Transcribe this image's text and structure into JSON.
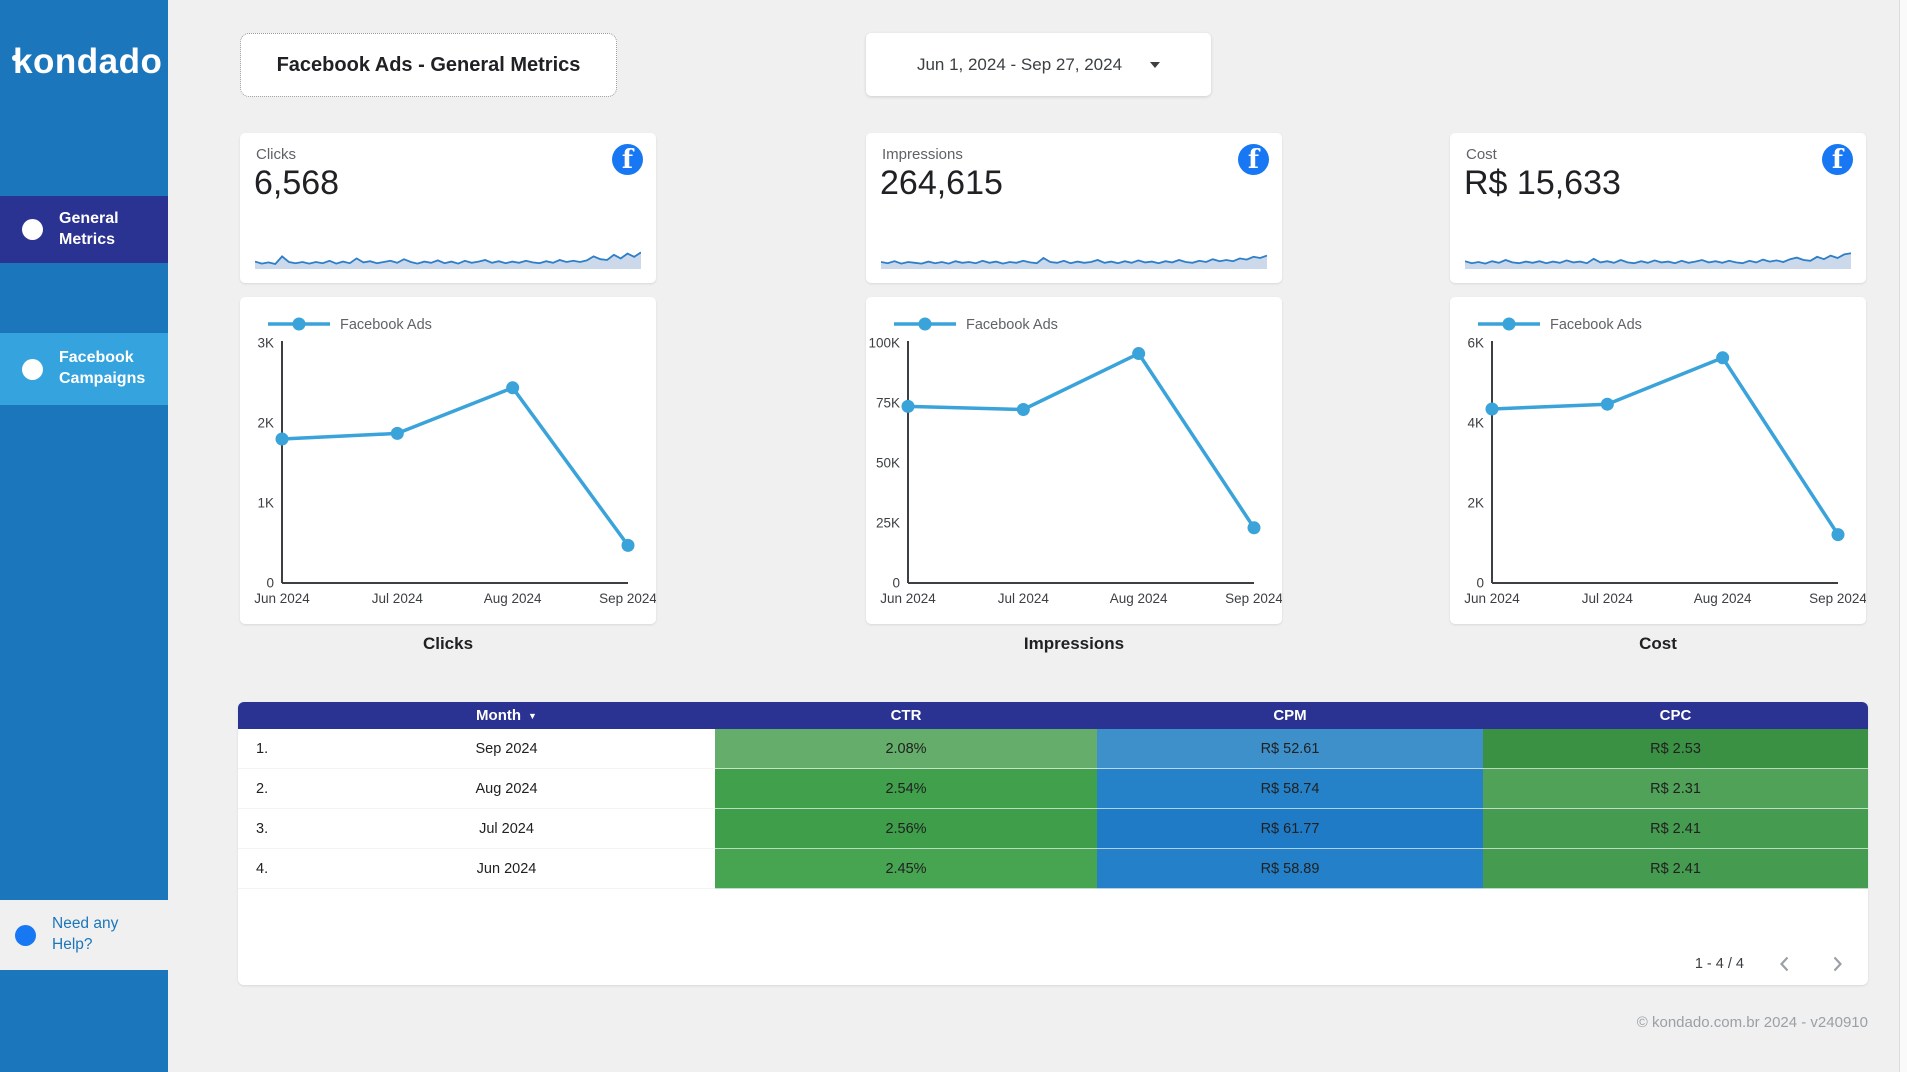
{
  "sidebar": {
    "logo": "kondado",
    "items": [
      {
        "label": "General Metrics",
        "active": true
      },
      {
        "label": "Facebook Campaigns",
        "active": false
      }
    ],
    "help": "Need any Help?"
  },
  "header": {
    "title": "Facebook Ads - General Metrics",
    "date_range": "Jun 1, 2024 - Sep 27, 2024"
  },
  "theme": {
    "sidebar_blue": "#1b76bc",
    "nav_active_navy": "#2a3292",
    "nav_active_light_blue": "#34a3de",
    "facebook_blue": "#1877f2",
    "chart_line_blue": "#39a3da",
    "sparkline_blue": "#2e7ec8",
    "sparkline_fill": "#c5d5e9",
    "table_header_navy": "#2a3292",
    "page_background": "#f0f0f0"
  },
  "scorecards": [
    {
      "label": "Clicks",
      "value": "6,568",
      "sparkline": [
        0.32,
        0.22,
        0.28,
        0.2,
        0.58,
        0.3,
        0.24,
        0.3,
        0.22,
        0.3,
        0.24,
        0.36,
        0.22,
        0.32,
        0.24,
        0.48,
        0.28,
        0.34,
        0.24,
        0.3,
        0.36,
        0.26,
        0.44,
        0.3,
        0.22,
        0.32,
        0.26,
        0.38,
        0.24,
        0.32,
        0.22,
        0.36,
        0.26,
        0.32,
        0.4,
        0.26,
        0.34,
        0.24,
        0.32,
        0.26,
        0.36,
        0.28,
        0.24,
        0.34,
        0.26,
        0.4,
        0.3,
        0.36,
        0.3,
        0.38,
        0.58,
        0.44,
        0.4,
        0.66,
        0.48,
        0.72,
        0.56,
        0.78
      ]
    },
    {
      "label": "Impressions",
      "value": "264,615",
      "sparkline": [
        0.3,
        0.24,
        0.34,
        0.22,
        0.3,
        0.26,
        0.22,
        0.32,
        0.24,
        0.3,
        0.22,
        0.34,
        0.26,
        0.3,
        0.24,
        0.36,
        0.26,
        0.32,
        0.22,
        0.3,
        0.26,
        0.36,
        0.28,
        0.24,
        0.5,
        0.3,
        0.26,
        0.36,
        0.24,
        0.32,
        0.26,
        0.3,
        0.4,
        0.26,
        0.32,
        0.24,
        0.34,
        0.26,
        0.38,
        0.28,
        0.32,
        0.24,
        0.34,
        0.28,
        0.4,
        0.3,
        0.26,
        0.36,
        0.3,
        0.44,
        0.34,
        0.4,
        0.34,
        0.48,
        0.42,
        0.56,
        0.5,
        0.62
      ]
    },
    {
      "label": "Cost",
      "value": "R$ 15,633",
      "sparkline": [
        0.34,
        0.24,
        0.3,
        0.22,
        0.34,
        0.26,
        0.4,
        0.28,
        0.24,
        0.32,
        0.26,
        0.34,
        0.24,
        0.32,
        0.26,
        0.38,
        0.28,
        0.32,
        0.24,
        0.46,
        0.28,
        0.34,
        0.26,
        0.4,
        0.28,
        0.24,
        0.34,
        0.26,
        0.38,
        0.28,
        0.32,
        0.24,
        0.36,
        0.26,
        0.32,
        0.4,
        0.28,
        0.34,
        0.26,
        0.36,
        0.28,
        0.24,
        0.36,
        0.28,
        0.42,
        0.32,
        0.38,
        0.3,
        0.44,
        0.52,
        0.4,
        0.36,
        0.56,
        0.44,
        0.62,
        0.5,
        0.68,
        0.74
      ]
    }
  ],
  "chart_data": [
    {
      "type": "line",
      "title": "Clicks",
      "categories": [
        "Jun 2024",
        "Jul 2024",
        "Aug 2024",
        "Sep 2024"
      ],
      "series": [
        {
          "name": "Facebook Ads",
          "color": "#39a3da",
          "values": [
            1800,
            1870,
            2440,
            470
          ]
        }
      ],
      "ylim": [
        0,
        3000
      ],
      "yticks": [
        "0",
        "1K",
        "2K",
        "3K"
      ],
      "grid": false,
      "legend_position": "top-left"
    },
    {
      "type": "line",
      "title": "Impressions",
      "categories": [
        "Jun 2024",
        "Jul 2024",
        "Aug 2024",
        "Sep 2024"
      ],
      "series": [
        {
          "name": "Facebook Ads",
          "color": "#39a3da",
          "values": [
            73600,
            72300,
            95600,
            23000
          ]
        }
      ],
      "ylim": [
        0,
        100000
      ],
      "yticks": [
        "0",
        "25K",
        "50K",
        "75K",
        "100K"
      ],
      "grid": false,
      "legend_position": "top-left"
    },
    {
      "type": "line",
      "title": "Cost",
      "categories": [
        "Jun 2024",
        "Jul 2024",
        "Aug 2024",
        "Sep 2024"
      ],
      "series": [
        {
          "name": "Facebook Ads",
          "color": "#39a3da",
          "values": [
            4350,
            4470,
            5630,
            1210
          ]
        }
      ],
      "ylim": [
        0,
        6000
      ],
      "yticks": [
        "0",
        "2K",
        "4K",
        "6K"
      ],
      "grid": false,
      "legend_position": "top-left"
    }
  ],
  "table": {
    "columns": {
      "num": "",
      "month": "Month",
      "ctr": "CTR",
      "cpm": "CPM",
      "cpc": "CPC"
    },
    "rows": [
      {
        "num": "1.",
        "month": "Sep 2024",
        "ctr": {
          "text": "2.08%",
          "color": "#64ad6a"
        },
        "cpm": {
          "text": "R$ 52.61",
          "color": "#3e90cb"
        },
        "cpc": {
          "text": "R$ 2.53",
          "color": "#3a9143"
        }
      },
      {
        "num": "2.",
        "month": "Aug 2024",
        "ctr": {
          "text": "2.54%",
          "color": "#40a04b"
        },
        "cpm": {
          "text": "R$ 58.74",
          "color": "#2581c8"
        },
        "cpc": {
          "text": "R$ 2.31",
          "color": "#50a259"
        }
      },
      {
        "num": "3.",
        "month": "Jul 2024",
        "ctr": {
          "text": "2.56%",
          "color": "#3e9e49"
        },
        "cpm": {
          "text": "R$ 61.77",
          "color": "#1f7bc6"
        },
        "cpc": {
          "text": "R$ 2.41",
          "color": "#459b4f"
        }
      },
      {
        "num": "4.",
        "month": "Jun 2024",
        "ctr": {
          "text": "2.45%",
          "color": "#47a451"
        },
        "cpm": {
          "text": "R$ 58.89",
          "color": "#2480c8"
        },
        "cpc": {
          "text": "R$ 2.41",
          "color": "#459b4f"
        }
      }
    ],
    "pagination": "1 - 4 / 4"
  },
  "footer": "© kondado.com.br 2024 - v240910"
}
